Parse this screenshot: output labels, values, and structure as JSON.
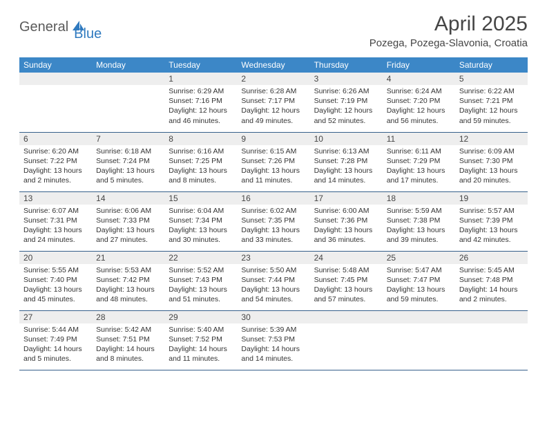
{
  "brand": {
    "part1": "General",
    "part2": "Blue"
  },
  "title": "April 2025",
  "location": "Pozega, Pozega-Slavonia, Croatia",
  "colors": {
    "header_bg": "#3c87c7",
    "header_text": "#ffffff",
    "daynum_bg": "#eeeeee",
    "divider": "#355f8a",
    "brand_blue": "#2f7abf",
    "text": "#333333"
  },
  "weekdays": [
    "Sunday",
    "Monday",
    "Tuesday",
    "Wednesday",
    "Thursday",
    "Friday",
    "Saturday"
  ],
  "weeks": [
    [
      null,
      null,
      {
        "n": "1",
        "sr": "Sunrise: 6:29 AM",
        "ss": "Sunset: 7:16 PM",
        "d1": "Daylight: 12 hours",
        "d2": "and 46 minutes."
      },
      {
        "n": "2",
        "sr": "Sunrise: 6:28 AM",
        "ss": "Sunset: 7:17 PM",
        "d1": "Daylight: 12 hours",
        "d2": "and 49 minutes."
      },
      {
        "n": "3",
        "sr": "Sunrise: 6:26 AM",
        "ss": "Sunset: 7:19 PM",
        "d1": "Daylight: 12 hours",
        "d2": "and 52 minutes."
      },
      {
        "n": "4",
        "sr": "Sunrise: 6:24 AM",
        "ss": "Sunset: 7:20 PM",
        "d1": "Daylight: 12 hours",
        "d2": "and 56 minutes."
      },
      {
        "n": "5",
        "sr": "Sunrise: 6:22 AM",
        "ss": "Sunset: 7:21 PM",
        "d1": "Daylight: 12 hours",
        "d2": "and 59 minutes."
      }
    ],
    [
      {
        "n": "6",
        "sr": "Sunrise: 6:20 AM",
        "ss": "Sunset: 7:22 PM",
        "d1": "Daylight: 13 hours",
        "d2": "and 2 minutes."
      },
      {
        "n": "7",
        "sr": "Sunrise: 6:18 AM",
        "ss": "Sunset: 7:24 PM",
        "d1": "Daylight: 13 hours",
        "d2": "and 5 minutes."
      },
      {
        "n": "8",
        "sr": "Sunrise: 6:16 AM",
        "ss": "Sunset: 7:25 PM",
        "d1": "Daylight: 13 hours",
        "d2": "and 8 minutes."
      },
      {
        "n": "9",
        "sr": "Sunrise: 6:15 AM",
        "ss": "Sunset: 7:26 PM",
        "d1": "Daylight: 13 hours",
        "d2": "and 11 minutes."
      },
      {
        "n": "10",
        "sr": "Sunrise: 6:13 AM",
        "ss": "Sunset: 7:28 PM",
        "d1": "Daylight: 13 hours",
        "d2": "and 14 minutes."
      },
      {
        "n": "11",
        "sr": "Sunrise: 6:11 AM",
        "ss": "Sunset: 7:29 PM",
        "d1": "Daylight: 13 hours",
        "d2": "and 17 minutes."
      },
      {
        "n": "12",
        "sr": "Sunrise: 6:09 AM",
        "ss": "Sunset: 7:30 PM",
        "d1": "Daylight: 13 hours",
        "d2": "and 20 minutes."
      }
    ],
    [
      {
        "n": "13",
        "sr": "Sunrise: 6:07 AM",
        "ss": "Sunset: 7:31 PM",
        "d1": "Daylight: 13 hours",
        "d2": "and 24 minutes."
      },
      {
        "n": "14",
        "sr": "Sunrise: 6:06 AM",
        "ss": "Sunset: 7:33 PM",
        "d1": "Daylight: 13 hours",
        "d2": "and 27 minutes."
      },
      {
        "n": "15",
        "sr": "Sunrise: 6:04 AM",
        "ss": "Sunset: 7:34 PM",
        "d1": "Daylight: 13 hours",
        "d2": "and 30 minutes."
      },
      {
        "n": "16",
        "sr": "Sunrise: 6:02 AM",
        "ss": "Sunset: 7:35 PM",
        "d1": "Daylight: 13 hours",
        "d2": "and 33 minutes."
      },
      {
        "n": "17",
        "sr": "Sunrise: 6:00 AM",
        "ss": "Sunset: 7:36 PM",
        "d1": "Daylight: 13 hours",
        "d2": "and 36 minutes."
      },
      {
        "n": "18",
        "sr": "Sunrise: 5:59 AM",
        "ss": "Sunset: 7:38 PM",
        "d1": "Daylight: 13 hours",
        "d2": "and 39 minutes."
      },
      {
        "n": "19",
        "sr": "Sunrise: 5:57 AM",
        "ss": "Sunset: 7:39 PM",
        "d1": "Daylight: 13 hours",
        "d2": "and 42 minutes."
      }
    ],
    [
      {
        "n": "20",
        "sr": "Sunrise: 5:55 AM",
        "ss": "Sunset: 7:40 PM",
        "d1": "Daylight: 13 hours",
        "d2": "and 45 minutes."
      },
      {
        "n": "21",
        "sr": "Sunrise: 5:53 AM",
        "ss": "Sunset: 7:42 PM",
        "d1": "Daylight: 13 hours",
        "d2": "and 48 minutes."
      },
      {
        "n": "22",
        "sr": "Sunrise: 5:52 AM",
        "ss": "Sunset: 7:43 PM",
        "d1": "Daylight: 13 hours",
        "d2": "and 51 minutes."
      },
      {
        "n": "23",
        "sr": "Sunrise: 5:50 AM",
        "ss": "Sunset: 7:44 PM",
        "d1": "Daylight: 13 hours",
        "d2": "and 54 minutes."
      },
      {
        "n": "24",
        "sr": "Sunrise: 5:48 AM",
        "ss": "Sunset: 7:45 PM",
        "d1": "Daylight: 13 hours",
        "d2": "and 57 minutes."
      },
      {
        "n": "25",
        "sr": "Sunrise: 5:47 AM",
        "ss": "Sunset: 7:47 PM",
        "d1": "Daylight: 13 hours",
        "d2": "and 59 minutes."
      },
      {
        "n": "26",
        "sr": "Sunrise: 5:45 AM",
        "ss": "Sunset: 7:48 PM",
        "d1": "Daylight: 14 hours",
        "d2": "and 2 minutes."
      }
    ],
    [
      {
        "n": "27",
        "sr": "Sunrise: 5:44 AM",
        "ss": "Sunset: 7:49 PM",
        "d1": "Daylight: 14 hours",
        "d2": "and 5 minutes."
      },
      {
        "n": "28",
        "sr": "Sunrise: 5:42 AM",
        "ss": "Sunset: 7:51 PM",
        "d1": "Daylight: 14 hours",
        "d2": "and 8 minutes."
      },
      {
        "n": "29",
        "sr": "Sunrise: 5:40 AM",
        "ss": "Sunset: 7:52 PM",
        "d1": "Daylight: 14 hours",
        "d2": "and 11 minutes."
      },
      {
        "n": "30",
        "sr": "Sunrise: 5:39 AM",
        "ss": "Sunset: 7:53 PM",
        "d1": "Daylight: 14 hours",
        "d2": "and 14 minutes."
      },
      null,
      null,
      null
    ]
  ]
}
